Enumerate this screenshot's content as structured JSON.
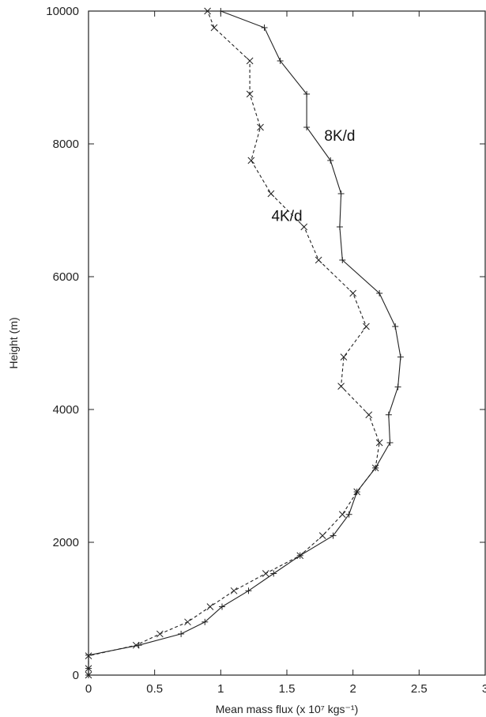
{
  "chart_data": {
    "type": "line",
    "xlabel": "Mean mass flux (x 10⁷ kgs⁻¹)",
    "ylabel": "Height (m)",
    "xlim": [
      0,
      3
    ],
    "ylim": [
      0,
      10000
    ],
    "xticks": [
      "0",
      "0.5",
      "1",
      "1.5",
      "2",
      "2.5",
      "3"
    ],
    "yticks": [
      "0",
      "2000",
      "4000",
      "6000",
      "8000",
      "10000"
    ],
    "grid": false,
    "series": [
      {
        "name": "8K/d",
        "style": "solid",
        "marker": "plus",
        "color": "#222222",
        "x": [
          0,
          0,
          0,
          0.38,
          0.7,
          0.88,
          1.01,
          1.21,
          1.4,
          1.6,
          1.85,
          1.97,
          2.03,
          2.17,
          2.28,
          2.27,
          2.34,
          2.36,
          2.32,
          2.2,
          1.92,
          1.9,
          1.91,
          1.83,
          1.65,
          1.65,
          1.45,
          1.33,
          1.0
        ],
        "y": [
          0,
          100,
          300,
          450,
          620,
          800,
          1030,
          1270,
          1530,
          1800,
          2100,
          2420,
          2760,
          3120,
          3500,
          3920,
          4340,
          4790,
          5250,
          5750,
          6250,
          6750,
          7250,
          7750,
          8250,
          8750,
          9250,
          9750,
          10000
        ]
      },
      {
        "name": "4K/d",
        "style": "dashed",
        "marker": "x",
        "color": "#222222",
        "x": [
          0,
          0,
          0,
          0.36,
          0.54,
          0.75,
          0.92,
          1.1,
          1.34,
          1.6,
          1.77,
          1.92,
          2.03,
          2.17,
          2.2,
          2.12,
          1.91,
          1.93,
          2.1,
          2.0,
          1.74,
          1.63,
          1.38,
          1.23,
          1.3,
          1.22,
          1.22,
          0.95,
          0.9
        ],
        "y": [
          0,
          100,
          290,
          450,
          620,
          800,
          1030,
          1270,
          1530,
          1800,
          2100,
          2420,
          2760,
          3120,
          3500,
          3920,
          4350,
          4790,
          5250,
          5750,
          6250,
          6750,
          7250,
          7750,
          8250,
          8750,
          9250,
          9750,
          10000
        ]
      }
    ],
    "annotations": [
      {
        "text": "8K/d",
        "x": 1.9,
        "y": 8050
      },
      {
        "text": "4K/d",
        "x": 1.5,
        "y": 6840
      }
    ]
  }
}
